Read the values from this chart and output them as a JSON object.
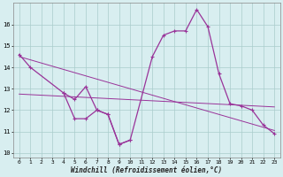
{
  "series1_x": [
    0,
    1,
    4,
    5,
    6,
    7,
    8,
    9,
    10,
    12,
    13,
    14,
    15,
    16,
    17,
    18,
    19,
    20,
    21,
    22,
    23
  ],
  "series1_y": [
    14.6,
    14.0,
    12.8,
    12.5,
    13.1,
    12.0,
    11.8,
    10.4,
    10.6,
    14.5,
    15.5,
    15.7,
    15.7,
    16.7,
    15.9,
    13.7,
    12.3,
    12.2,
    12.0,
    11.3,
    10.9
  ],
  "series2_x": [
    4,
    5,
    6,
    7,
    8,
    9,
    10
  ],
  "series2_y": [
    12.8,
    11.6,
    11.6,
    12.0,
    11.8,
    10.4,
    10.6
  ],
  "trend1_x": [
    0,
    23
  ],
  "trend1_y": [
    14.5,
    11.05
  ],
  "trend2_x": [
    0,
    23
  ],
  "trend2_y": [
    12.75,
    12.15
  ],
  "line_color": "#993399",
  "bg_color": "#d8eef0",
  "grid_color": "#aacccc",
  "xlabel": "Windchill (Refroidissement éolien,°C)",
  "ylim": [
    9.8,
    17.0
  ],
  "xlim": [
    -0.5,
    23.5
  ],
  "yticks": [
    10,
    11,
    12,
    13,
    14,
    15,
    16
  ],
  "xticks": [
    0,
    1,
    2,
    3,
    4,
    5,
    6,
    7,
    8,
    9,
    10,
    11,
    12,
    13,
    14,
    15,
    16,
    17,
    18,
    19,
    20,
    21,
    22,
    23
  ],
  "xlabel_fontsize": 5.5,
  "tick_fontsize": 5,
  "linewidth": 0.9,
  "markersize": 3
}
